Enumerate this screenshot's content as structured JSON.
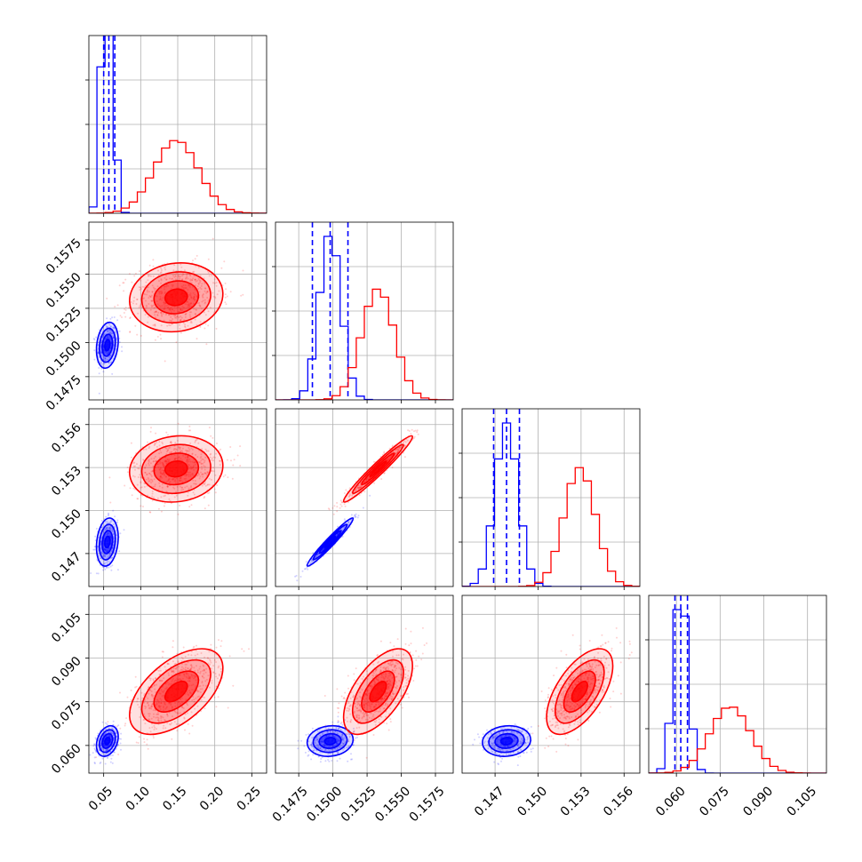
{
  "chart_data": {
    "type": "corner",
    "params": [
      {
        "lim": [
          0.03,
          0.27
        ],
        "ticks": [
          "0.05",
          "0.10",
          "0.15",
          "0.20",
          "0.25"
        ],
        "tick_values": [
          0.05,
          0.1,
          0.15,
          0.2,
          0.25
        ]
      },
      {
        "lim": [
          0.1458,
          0.1588
        ],
        "ticks": [
          "0.1475",
          "0.1500",
          "0.1525",
          "0.1550",
          "0.1575"
        ],
        "tick_values": [
          0.1475,
          0.15,
          0.1525,
          0.155,
          0.1575
        ]
      },
      {
        "lim": [
          0.1447,
          0.1571
        ],
        "ticks": [
          "0.147",
          "0.150",
          "0.153",
          "0.156"
        ],
        "tick_values": [
          0.147,
          0.15,
          0.153,
          0.156
        ]
      },
      {
        "lim": [
          0.0505,
          0.1115
        ],
        "ticks": [
          "0.060",
          "0.075",
          "0.090",
          "0.105"
        ],
        "tick_values": [
          0.06,
          0.075,
          0.09,
          0.105
        ]
      }
    ],
    "series": [
      {
        "name": "blue",
        "color": "#0000ff",
        "means": [
          0.055,
          0.1498,
          0.1478,
          0.0615
        ],
        "sigmas": [
          0.007,
          0.0008,
          0.0008,
          0.0025
        ],
        "quantiles": [
          [
            0.05,
            0.057,
            0.065
          ],
          [
            0.1485,
            0.1498,
            0.1511
          ],
          [
            0.1469,
            0.1478,
            0.1487
          ],
          [
            0.0595,
            0.0615,
            0.0638
          ]
        ],
        "correlations": {
          "0-1": 0.2,
          "0-2": 0.2,
          "0-3": 0.3,
          "1-2": 0.97,
          "1-3": 0.1,
          "2-3": 0.1
        }
      },
      {
        "name": "red",
        "color": "#ff0000",
        "means": [
          0.148,
          0.1533,
          0.1529,
          0.0785
        ],
        "sigmas": [
          0.03,
          0.0012,
          0.0011,
          0.007
        ],
        "correlations": {
          "0-1": 0.1,
          "0-2": 0.1,
          "0-3": 0.55,
          "1-2": 0.97,
          "1-3": 0.6,
          "2-3": 0.6
        }
      }
    ],
    "grid": true
  }
}
